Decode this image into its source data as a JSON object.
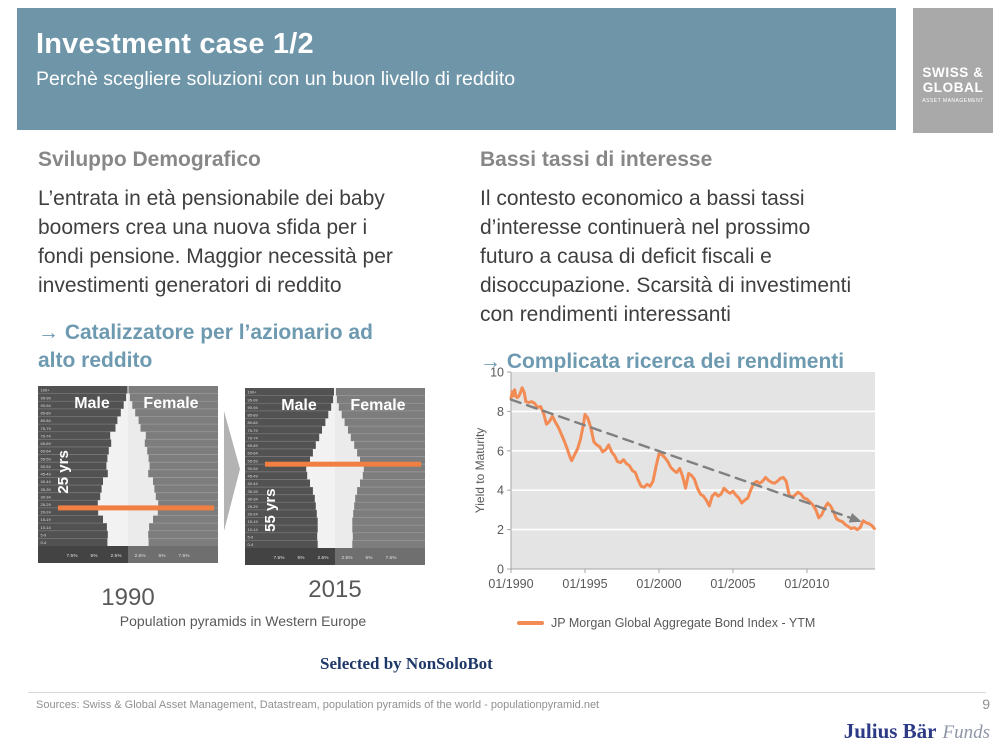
{
  "header": {
    "title": "Investment case 1/2",
    "subtitle": "Perchè scegliere soluzioni con un buon livello di reddito",
    "logo": {
      "line1": "SWISS &",
      "line2": "GLOBAL",
      "line3": "ASSET MANAGEMENT"
    }
  },
  "left_column": {
    "heading": "Sviluppo Demografico",
    "body": "L’entrata in età pensionabile dei baby\nboomers crea una nuova sfida per i\nfondi pensione. Maggior necessità per\ninvestimenti generatori di reddito",
    "takeaway": "→ Catalizzatore per l’azionario ad\nalto reddito",
    "figure_caption": "Population pyramids in Western Europe"
  },
  "right_column": {
    "heading": "Bassi tassi di interesse",
    "body": "Il contesto economico a bassi tassi\nd’interesse continuerà nel prossimo\nfuturo a causa di deficit fiscali e\ndisoccupazione. Scarsità di investimenti\ncon rendimenti interessanti",
    "takeaway": "→ Complicata ricerca dei rendimenti"
  },
  "footer": {
    "selected_by": "Selected by NonSoloBot",
    "sources": "Sources: Swiss & Global Asset Management, Datastream, population pyramids of the world - populationpyramid.net",
    "page_number": "9",
    "brand_name": "Julius Bär",
    "brand_suffix": "Funds"
  },
  "colors": {
    "banner_blue": "#6E95A8",
    "accent_blue": "#6D9AB0",
    "series_orange": "#F28B54",
    "pyramid_orange": "#F07F41",
    "trend_gray": "#808080",
    "plot_background": "#E4E4E4",
    "navy": "#1E3868"
  },
  "chart_data": [
    {
      "id": "ytm_line_chart",
      "type": "line",
      "title": "",
      "xlabel": "",
      "ylabel": "Yield to Maturity",
      "ylim": [
        0,
        10
      ],
      "yticks": [
        0,
        2,
        4,
        6,
        8,
        10
      ],
      "xlim": [
        1990,
        2014.6
      ],
      "xticks": [
        1990,
        1995,
        2000,
        2005,
        2010
      ],
      "xtick_labels": [
        "01/1990",
        "01/1995",
        "01/2000",
        "01/2005",
        "01/2010"
      ],
      "grid": "horizontal white gridlines on gray plot area",
      "legend_position": "bottom",
      "series": [
        {
          "name": "JP Morgan Global Aggregate Bond Index - YTM",
          "color": "#F28B54",
          "width": 3,
          "dash": null,
          "arrow_end": false,
          "points": [
            [
              1990.0,
              8.65
            ],
            [
              1990.08,
              9.0
            ],
            [
              1990.17,
              8.8
            ],
            [
              1990.25,
              9.1
            ],
            [
              1990.33,
              8.75
            ],
            [
              1990.42,
              8.7
            ],
            [
              1990.5,
              8.75
            ],
            [
              1990.58,
              8.85
            ],
            [
              1990.75,
              9.2
            ],
            [
              1990.9,
              8.95
            ],
            [
              1991.0,
              8.5
            ],
            [
              1991.2,
              8.45
            ],
            [
              1991.4,
              8.5
            ],
            [
              1991.6,
              8.4
            ],
            [
              1991.8,
              8.2
            ],
            [
              1992.0,
              8.25
            ],
            [
              1992.2,
              7.9
            ],
            [
              1992.4,
              7.35
            ],
            [
              1992.6,
              7.5
            ],
            [
              1992.8,
              7.75
            ],
            [
              1993.0,
              7.45
            ],
            [
              1993.2,
              7.2
            ],
            [
              1993.4,
              6.85
            ],
            [
              1993.6,
              6.5
            ],
            [
              1993.8,
              6.1
            ],
            [
              1994.0,
              5.65
            ],
            [
              1994.1,
              5.5
            ],
            [
              1994.3,
              5.8
            ],
            [
              1994.5,
              6.1
            ],
            [
              1994.7,
              6.6
            ],
            [
              1994.9,
              7.35
            ],
            [
              1995.0,
              7.85
            ],
            [
              1995.2,
              7.65
            ],
            [
              1995.4,
              7.15
            ],
            [
              1995.6,
              6.45
            ],
            [
              1995.8,
              6.3
            ],
            [
              1996.0,
              6.2
            ],
            [
              1996.2,
              5.95
            ],
            [
              1996.4,
              6.05
            ],
            [
              1996.6,
              6.3
            ],
            [
              1996.8,
              5.95
            ],
            [
              1997.0,
              5.75
            ],
            [
              1997.2,
              5.45
            ],
            [
              1997.4,
              5.4
            ],
            [
              1997.6,
              5.55
            ],
            [
              1997.8,
              5.35
            ],
            [
              1998.0,
              5.25
            ],
            [
              1998.2,
              5.0
            ],
            [
              1998.4,
              4.9
            ],
            [
              1998.6,
              4.5
            ],
            [
              1998.8,
              4.2
            ],
            [
              1999.0,
              4.15
            ],
            [
              1999.2,
              4.3
            ],
            [
              1999.4,
              4.2
            ],
            [
              1999.6,
              4.45
            ],
            [
              1999.8,
              5.2
            ],
            [
              2000.0,
              5.85
            ],
            [
              2000.2,
              5.8
            ],
            [
              2000.4,
              5.65
            ],
            [
              2000.6,
              5.45
            ],
            [
              2000.8,
              5.15
            ],
            [
              2001.0,
              5.0
            ],
            [
              2001.2,
              4.9
            ],
            [
              2001.4,
              5.1
            ],
            [
              2001.6,
              4.7
            ],
            [
              2001.8,
              4.1
            ],
            [
              2002.0,
              4.85
            ],
            [
              2002.2,
              4.75
            ],
            [
              2002.4,
              4.55
            ],
            [
              2002.6,
              4.1
            ],
            [
              2002.8,
              3.8
            ],
            [
              2003.0,
              3.7
            ],
            [
              2003.2,
              3.5
            ],
            [
              2003.4,
              3.2
            ],
            [
              2003.6,
              3.7
            ],
            [
              2003.8,
              3.85
            ],
            [
              2004.0,
              3.7
            ],
            [
              2004.2,
              3.8
            ],
            [
              2004.4,
              4.1
            ],
            [
              2004.6,
              3.95
            ],
            [
              2004.8,
              3.85
            ],
            [
              2005.0,
              3.95
            ],
            [
              2005.2,
              3.75
            ],
            [
              2005.4,
              3.6
            ],
            [
              2005.6,
              3.35
            ],
            [
              2005.8,
              3.5
            ],
            [
              2006.0,
              3.6
            ],
            [
              2006.2,
              4.0
            ],
            [
              2006.4,
              4.35
            ],
            [
              2006.6,
              4.45
            ],
            [
              2006.8,
              4.35
            ],
            [
              2007.0,
              4.45
            ],
            [
              2007.2,
              4.65
            ],
            [
              2007.4,
              4.5
            ],
            [
              2007.6,
              4.4
            ],
            [
              2007.8,
              4.35
            ],
            [
              2008.0,
              4.45
            ],
            [
              2008.2,
              4.6
            ],
            [
              2008.4,
              4.65
            ],
            [
              2008.6,
              4.45
            ],
            [
              2008.8,
              3.75
            ],
            [
              2009.0,
              3.65
            ],
            [
              2009.2,
              3.75
            ],
            [
              2009.4,
              3.9
            ],
            [
              2009.6,
              3.8
            ],
            [
              2009.8,
              3.6
            ],
            [
              2010.0,
              3.55
            ],
            [
              2010.2,
              3.4
            ],
            [
              2010.4,
              3.25
            ],
            [
              2010.6,
              3.0
            ],
            [
              2010.8,
              2.6
            ],
            [
              2011.0,
              2.75
            ],
            [
              2011.2,
              3.1
            ],
            [
              2011.4,
              3.35
            ],
            [
              2011.6,
              3.2
            ],
            [
              2011.8,
              2.9
            ],
            [
              2012.0,
              2.55
            ],
            [
              2012.2,
              2.45
            ],
            [
              2012.4,
              2.4
            ],
            [
              2012.6,
              2.25
            ],
            [
              2012.8,
              2.15
            ],
            [
              2013.0,
              2.05
            ],
            [
              2013.2,
              2.1
            ],
            [
              2013.4,
              2.0
            ],
            [
              2013.6,
              2.1
            ],
            [
              2013.8,
              2.45
            ],
            [
              2014.0,
              2.35
            ],
            [
              2014.2,
              2.3
            ],
            [
              2014.4,
              2.2
            ],
            [
              2014.55,
              2.05
            ]
          ]
        },
        {
          "name": "downward trend line",
          "color": "#808080",
          "width": 2.4,
          "dash": "10 7",
          "arrow_end": true,
          "points": [
            [
              1990.0,
              8.6
            ],
            [
              2013.7,
              2.4
            ]
          ]
        }
      ]
    },
    {
      "id": "pyramid_1990",
      "type": "bar",
      "subtype": "population_pyramid",
      "title": "1990",
      "male_label": "Male",
      "female_label": "Female",
      "marker": {
        "label": "25 yrs",
        "age": 25
      },
      "age_bands": [
        "100+",
        "95-99",
        "90-94",
        "85-89",
        "80-84",
        "75-79",
        "70-74",
        "65-69",
        "60-64",
        "55-59",
        "50-54",
        "45-49",
        "40-44",
        "35-39",
        "30-34",
        "25-29",
        "20-24",
        "15-19",
        "10-14",
        "5-9",
        "0-4"
      ],
      "x_axis_labels": [
        "7.5%",
        "5%",
        "2.5%",
        "2.5%",
        "5%",
        "7.5%"
      ],
      "share_pct_per_band": [
        0.1,
        0.3,
        0.7,
        1.1,
        1.7,
        2.0,
        2.8,
        2.6,
        3.0,
        3.2,
        3.4,
        3.2,
        3.9,
        4.1,
        4.4,
        4.7,
        4.7,
        3.9,
        3.3,
        3.2,
        3.2
      ],
      "widths_frac": [
        0.01,
        0.04,
        0.09,
        0.15,
        0.22,
        0.26,
        0.37,
        0.35,
        0.4,
        0.43,
        0.45,
        0.42,
        0.52,
        0.55,
        0.58,
        0.63,
        0.62,
        0.52,
        0.44,
        0.42,
        0.43
      ]
    },
    {
      "id": "pyramid_2015",
      "type": "bar",
      "subtype": "population_pyramid",
      "title": "2015",
      "male_label": "Male",
      "female_label": "Female",
      "marker": {
        "label": "55 yrs",
        "age": 55
      },
      "age_bands": [
        "100+",
        "95-99",
        "90-94",
        "85-89",
        "80-84",
        "75-79",
        "70-74",
        "65-69",
        "60-64",
        "55-59",
        "50-54",
        "45-49",
        "40-44",
        "35-39",
        "30-34",
        "25-29",
        "20-24",
        "15-19",
        "10-14",
        "5-9",
        "0-4"
      ],
      "x_axis_labels": [
        "7.5%",
        "5%",
        "2.5%",
        "2.5%",
        "5%",
        "7.5%"
      ],
      "share_pct_per_band": [
        0.2,
        0.3,
        0.6,
        1.1,
        1.5,
        2.0,
        2.5,
        3.0,
        3.5,
        3.9,
        4.5,
        4.4,
        3.9,
        3.5,
        3.2,
        3.0,
        2.9,
        2.7,
        2.7,
        2.8,
        2.7
      ],
      "widths_frac": [
        0.02,
        0.04,
        0.08,
        0.14,
        0.2,
        0.27,
        0.33,
        0.4,
        0.46,
        0.52,
        0.6,
        0.58,
        0.52,
        0.46,
        0.42,
        0.4,
        0.38,
        0.36,
        0.36,
        0.37,
        0.36
      ]
    }
  ]
}
